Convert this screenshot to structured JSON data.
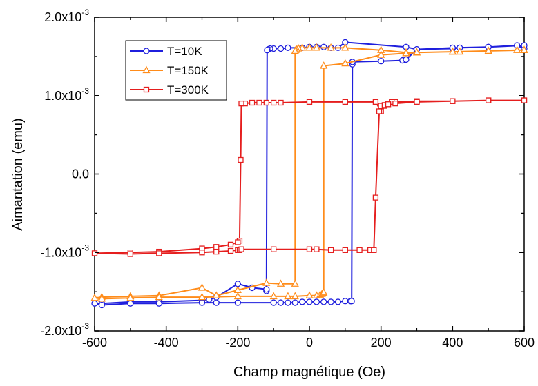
{
  "chart_data": {
    "type": "line",
    "xlabel": "Champ magnétique (Oe)",
    "ylabel": "Aimantation (emu)",
    "xlim": [
      -600,
      600
    ],
    "ylim": [
      -0.002,
      0.002
    ],
    "x_ticks": [
      -600,
      -400,
      -200,
      0,
      200,
      400,
      600
    ],
    "x_tick_labels": [
      "-600",
      "-400",
      "-200",
      "0",
      "200",
      "400",
      "600"
    ],
    "y_ticks": [
      -0.002,
      -0.001,
      0.0,
      0.001,
      0.002
    ],
    "y_tick_labels": [
      {
        "mant": "-2.0x10",
        "exp": "-3"
      },
      {
        "mant": "-1.0x10",
        "exp": "-3"
      },
      {
        "mant": "0.0",
        "exp": ""
      },
      {
        "mant": "1.0x10",
        "exp": "-3"
      },
      {
        "mant": "2.0x10",
        "exp": "-3"
      }
    ],
    "grid": false,
    "legend_position": "top-left",
    "series": [
      {
        "name": "T=10K",
        "color": "#1f1fdd",
        "marker": "circle",
        "x": [
          600,
          580,
          500,
          420,
          400,
          300,
          270,
          100,
          80,
          60,
          40,
          20,
          0,
          -20,
          -60,
          -80,
          -100,
          -110,
          -115,
          -118,
          -120,
          -120,
          -160,
          -200,
          -260,
          -280,
          -300,
          -420,
          -500,
          -580,
          -600,
          -580,
          -500,
          -420,
          -300,
          -260,
          -200,
          -100,
          -80,
          -60,
          -40,
          -20,
          0,
          20,
          40,
          60,
          80,
          100,
          115,
          118,
          120,
          120,
          200,
          260,
          270,
          300,
          400,
          500,
          600
        ],
        "y": [
          0.0016,
          0.00164,
          0.00162,
          0.00161,
          0.0016,
          0.00159,
          0.00162,
          0.00168,
          0.00161,
          0.00161,
          0.00162,
          0.00162,
          0.00162,
          0.00161,
          0.00161,
          0.0016,
          0.0016,
          0.0016,
          0.00159,
          0.00158,
          -0.00149,
          -0.00147,
          -0.00145,
          -0.0014,
          -0.00157,
          -0.0016,
          -0.00161,
          -0.00163,
          -0.00163,
          -0.00165,
          -0.00165,
          -0.00167,
          -0.00165,
          -0.00165,
          -0.00164,
          -0.00164,
          -0.00164,
          -0.00164,
          -0.00164,
          -0.00164,
          -0.00164,
          -0.00163,
          -0.00163,
          -0.00163,
          -0.00163,
          -0.00163,
          -0.00163,
          -0.00162,
          -0.00162,
          -0.00162,
          0.0014,
          0.00143,
          0.00144,
          0.00145,
          0.00146,
          0.00159,
          0.00161,
          0.00162,
          0.00164
        ]
      },
      {
        "name": "T=150K",
        "color": "#ff8c1a",
        "marker": "triangle",
        "x": [
          600,
          580,
          500,
          420,
          400,
          300,
          270,
          200,
          100,
          60,
          20,
          0,
          -20,
          -30,
          -35,
          -38,
          -40,
          -40,
          -80,
          -120,
          -200,
          -260,
          -300,
          -420,
          -500,
          -580,
          -600,
          -580,
          -500,
          -420,
          -300,
          -200,
          -100,
          -60,
          -40,
          0,
          20,
          30,
          35,
          38,
          40,
          40,
          100,
          200,
          270,
          300,
          400,
          500,
          600
        ],
        "y": [
          0.00158,
          0.00158,
          0.00157,
          0.00156,
          0.00156,
          0.00155,
          0.00155,
          0.00158,
          0.00161,
          0.00161,
          0.00161,
          0.00161,
          0.00161,
          0.0016,
          0.00159,
          0.00158,
          0.00157,
          -0.0014,
          -0.0014,
          -0.00139,
          -0.00148,
          -0.00155,
          -0.00145,
          -0.00155,
          -0.00156,
          -0.00157,
          -0.00158,
          -0.00159,
          -0.00158,
          -0.00157,
          -0.00157,
          -0.00156,
          -0.00156,
          -0.00156,
          -0.00156,
          -0.00155,
          -0.00155,
          -0.00154,
          -0.00153,
          -0.00152,
          -0.00151,
          0.00138,
          0.00141,
          0.00152,
          0.00154,
          0.00155,
          0.00156,
          0.00157,
          0.00158
        ]
      },
      {
        "name": "T=300K",
        "color": "#e51e1e",
        "marker": "square",
        "x": [
          600,
          500,
          400,
          300,
          240,
          230,
          220,
          210,
          200,
          185,
          100,
          0,
          -80,
          -100,
          -120,
          -140,
          -160,
          -180,
          -190,
          -192,
          -195,
          -200,
          -220,
          -260,
          -300,
          -420,
          -500,
          -600,
          -500,
          -420,
          -300,
          -260,
          -220,
          -200,
          -195,
          -190,
          -100,
          0,
          20,
          60,
          100,
          140,
          170,
          180,
          185,
          195,
          200,
          210,
          220,
          240,
          300,
          400,
          500,
          600
        ],
        "y": [
          0.00094,
          0.00094,
          0.00093,
          0.00093,
          0.00092,
          0.00092,
          0.00089,
          0.00087,
          0.0008,
          0.00092,
          0.00092,
          0.00092,
          0.00091,
          0.00091,
          0.00091,
          0.00091,
          0.00091,
          0.0009,
          0.0009,
          0.00018,
          -0.00085,
          -0.00087,
          -0.0009,
          -0.00093,
          -0.00095,
          -0.00099,
          -0.001,
          -0.00101,
          -0.00102,
          -0.00101,
          -0.001,
          -0.00099,
          -0.00098,
          -0.00097,
          -0.00097,
          -0.00096,
          -0.00096,
          -0.00096,
          -0.00096,
          -0.00097,
          -0.00097,
          -0.00097,
          -0.00097,
          -0.00097,
          -0.0003,
          0.0008,
          0.00087,
          0.00088,
          0.00089,
          0.0009,
          0.00092,
          0.00093,
          0.00094,
          0.00094
        ]
      }
    ]
  }
}
